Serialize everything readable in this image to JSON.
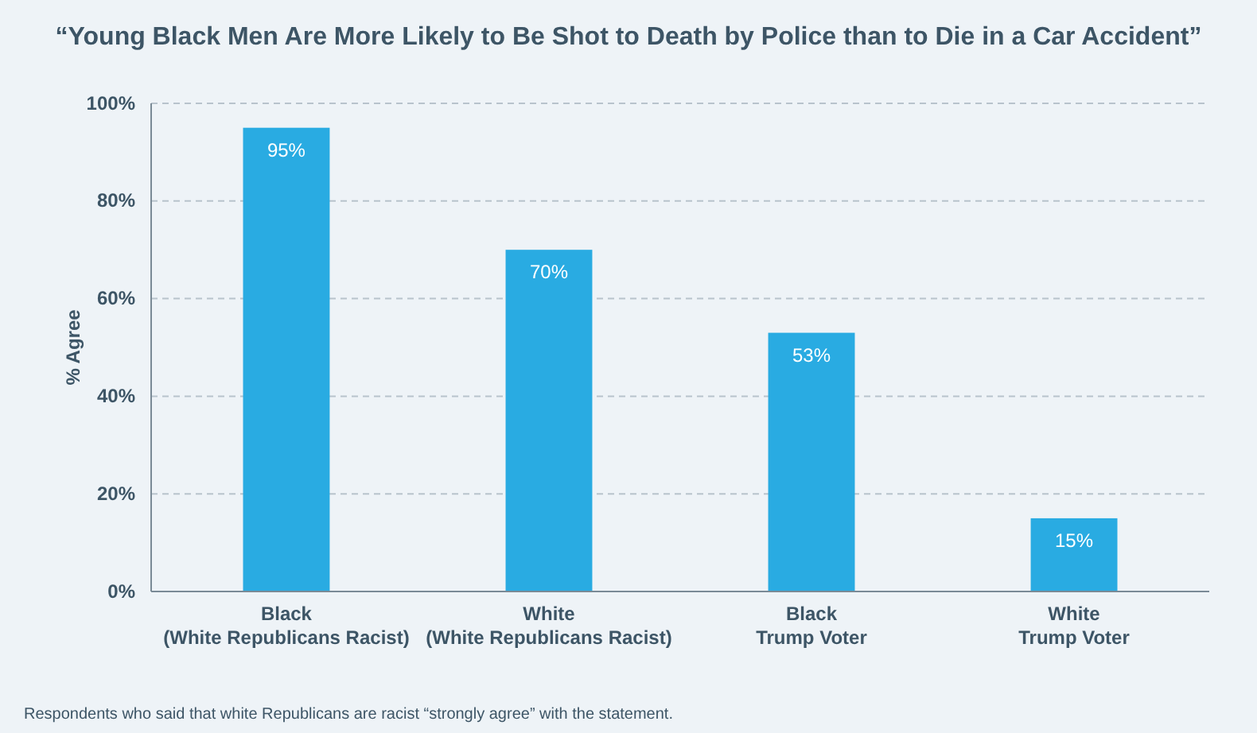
{
  "chart_data": {
    "type": "bar",
    "title": "“Young Black Men Are More Likely to Be Shot to Death by Police than to Die in a Car Accident”",
    "ylabel": "% Agree",
    "categories": [
      "Black\n(White Republicans Racist)",
      "White\n(White Republicans Racist)",
      "Black\nTrump Voter",
      "White\nTrump Voter"
    ],
    "values": [
      95,
      70,
      53,
      15
    ],
    "value_labels": [
      "95%",
      "70%",
      "53%",
      "15%"
    ],
    "color": "#29abe2",
    "ylim": [
      0,
      100
    ],
    "yticks": [
      {
        "value": 0,
        "label": "0%"
      },
      {
        "value": 20,
        "label": "20%"
      },
      {
        "value": 40,
        "label": "40%"
      },
      {
        "value": 60,
        "label": "60%"
      },
      {
        "value": 80,
        "label": "80%"
      },
      {
        "value": 100,
        "label": "100%"
      }
    ],
    "grid": "y",
    "annotations": [
      "Respondents who said that white Republicans are racist “strongly agree” with the statement."
    ]
  }
}
